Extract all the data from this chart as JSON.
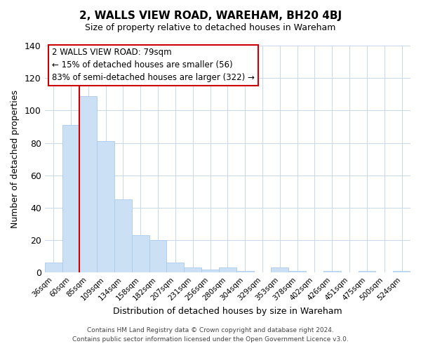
{
  "title": "2, WALLS VIEW ROAD, WAREHAM, BH20 4BJ",
  "subtitle": "Size of property relative to detached houses in Wareham",
  "xlabel": "Distribution of detached houses by size in Wareham",
  "ylabel": "Number of detached properties",
  "bar_color": "#cce0f5",
  "bar_edge_color": "#aaccee",
  "categories": [
    "36sqm",
    "60sqm",
    "85sqm",
    "109sqm",
    "134sqm",
    "158sqm",
    "182sqm",
    "207sqm",
    "231sqm",
    "256sqm",
    "280sqm",
    "304sqm",
    "329sqm",
    "353sqm",
    "378sqm",
    "402sqm",
    "426sqm",
    "451sqm",
    "475sqm",
    "500sqm",
    "524sqm"
  ],
  "values": [
    6,
    91,
    109,
    81,
    45,
    23,
    20,
    6,
    3,
    2,
    3,
    1,
    0,
    3,
    1,
    0,
    1,
    0,
    1,
    0,
    1
  ],
  "ylim": [
    0,
    140
  ],
  "yticks": [
    0,
    20,
    40,
    60,
    80,
    100,
    120,
    140
  ],
  "vline_color": "#cc0000",
  "annotation_line1": "2 WALLS VIEW ROAD: 79sqm",
  "annotation_line2": "← 15% of detached houses are smaller (56)",
  "annotation_line3": "83% of semi-detached houses are larger (322) →",
  "annotation_box_color": "#ffffff",
  "annotation_box_edge": "#cc0000",
  "footer_line1": "Contains HM Land Registry data © Crown copyright and database right 2024.",
  "footer_line2": "Contains public sector information licensed under the Open Government Licence v3.0.",
  "background_color": "#ffffff",
  "grid_color": "#c8d8ec"
}
